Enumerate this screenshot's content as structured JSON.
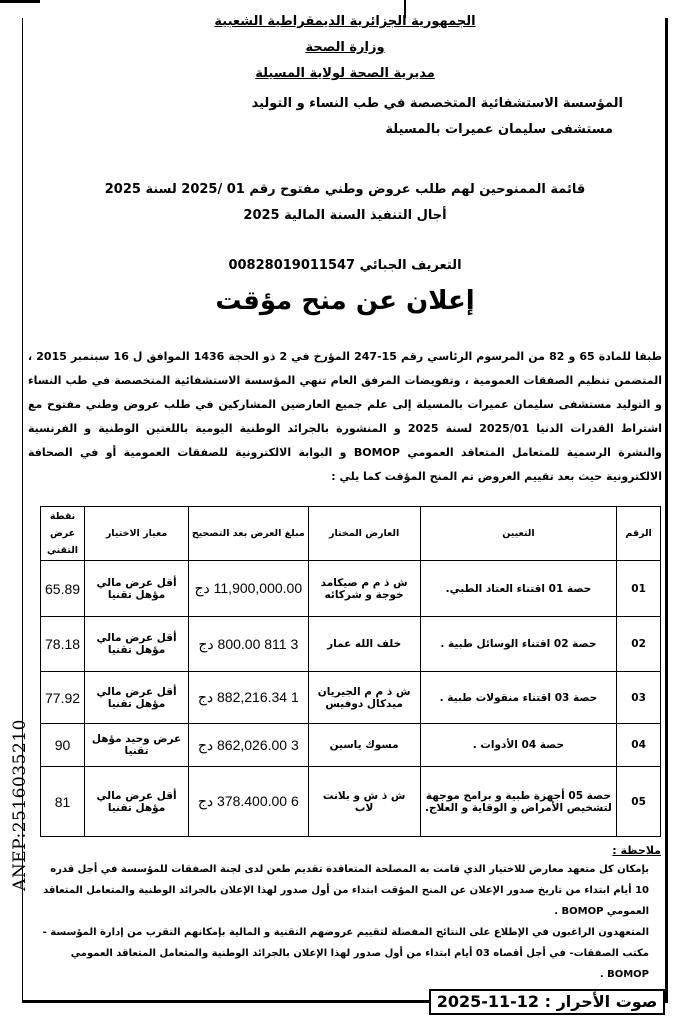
{
  "header": {
    "republic": "الجمهورية الجزائرية الديمقراطية الشعبية",
    "ministry": "وزارة الصحة",
    "directorate": "مديرية الصحة لولاية المسيلة",
    "institution": "المؤسسة الاستشفائية المتخصصة في طب النساء و التوليد",
    "hospital": "مستشفى سليمان عميرات بالمسيلة"
  },
  "titles": {
    "list": "قائمة الممنوحين لهم طلب عروض وطني مفتوح رقم 01 /2025 لسنة 2025",
    "deadline": "أجال التنفيذ السنة المالية 2025",
    "tax_id": "التعريف الجبائي 00828019011547",
    "main": "إعلان عن منح مؤقت"
  },
  "body": "طبقا للمادة 65 و 82 من المرسوم الرئاسي رقم 15-247 المؤرخ في 2 ذو الحجة 1436 الموافق ل 16 سبتمبر 2015 ، المتضمن تنظيم الصفقات العمومية ، وتفويضات المرفق العام تنهي المؤسسة الاستشفائية المتخصصة في طب النساء و التوليد مستشفى سليمان عميرات بالمسيلة إلى علم جميع العارضين المشاركين في طلب عروض وطني مفتوح مع اشتراط القدرات الدنيا 2025/01 لسنة 2025 و المنشورة بالجرائد الوطنية اليومية باللغتين الوطنية و الفرنسية والنشرة الرسمية للمتعامل المتعاقد العمومي BOMOP و البوابة الالكترونية للصفقات العمومية أو في الصحافة الالكترونية حيث بعد تقييم العروض تم المنح المؤقت كما يلي :",
  "table": {
    "headers": [
      "الرقم",
      "التعيين",
      "العارض المختار",
      "مبلغ العرض بعد التصحيح",
      "معيار الاختيار",
      "نقطة عرض التقني"
    ],
    "rows": [
      [
        "01",
        "حصة 01 اقتناء العتاد الطبي.",
        "ش ذ م م صيكامد خوجة و شركائه",
        "11,900,000.00 دج",
        "أقل عرض مالي مؤهل تقنيا",
        "65.89"
      ],
      [
        "02",
        "حصة 02 اقتناء الوسائل طبية .",
        "خلف الله عمار",
        "3 811 800.00 دج",
        "أقل عرض مالي مؤهل تقنيا",
        "78.18"
      ],
      [
        "03",
        "حصة 03 اقتناء منقولات طبية .",
        "ش ذ م م الجيريان ميدكال دوفيس",
        "1 882,216.34 دج",
        "أقل عرض مالي مؤهل تقنيا",
        "77.92"
      ],
      [
        "04",
        "حصة 04 الأدوات .",
        "مسوك ياسين",
        "3 862,026.00 دج",
        "عرض وحيد مؤهل تقنيا",
        "90"
      ],
      [
        "05",
        "حصة 05 أجهزة طبية و برامج موجهة لتشخيص الأمراض و الوقاية و العلاج.",
        "ش ذ ش و بلانت لاب",
        "6 378.400.00 دج",
        "أقل عرض مالي مؤهل تقنيا",
        "81"
      ]
    ]
  },
  "notes": {
    "title": "ملاحظة :",
    "p1": "بإمكان كل متعهد معارض للاختيار الذي قامت به المصلحة المتعاقدة تقديم طعن لدى لجنة الصفقات للمؤسسة في أجل قدره 10 أيام ابتداء من تاريخ صدور الإعلان عن المنح المؤقت ابتداء من أول صدور لهذا الإعلان بالجرائد الوطنية والمتعامل المتعاقد العمومي BOMOP .",
    "p2": "المتعهدون الراغبون في الإطلاع على النتائج المفصلة لتقييم عروضهم التقنية و المالية بإمكانهم التقرب من إدارة المؤسسة - مكتب الصفقات- في أجل أقصاه 03 أيام ابتداء من أول صدور لهذا الإعلان بالجرائد الوطنية والمتعامل المتعاقد العمومي BOMOP ."
  },
  "side_code": "ANEP:2516035210",
  "footer": "صوت الأحرار : 12-11-2025"
}
